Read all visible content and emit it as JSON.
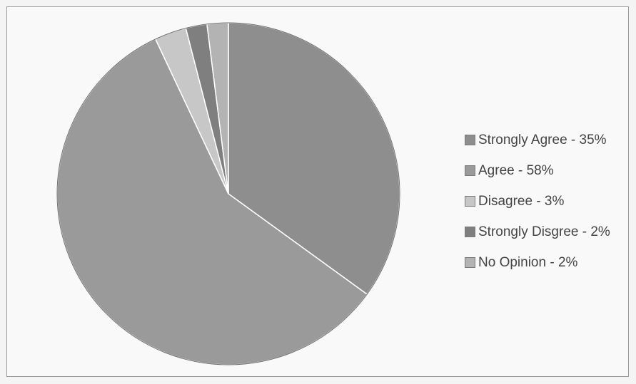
{
  "chart_data": {
    "type": "pie",
    "slices": [
      {
        "label": "Strongly Agree - 35%",
        "value": 35,
        "color": "#8e8e8e"
      },
      {
        "label": "Agree - 58%",
        "value": 58,
        "color": "#9a9a9a"
      },
      {
        "label": "Disagree - 3%",
        "value": 3,
        "color": "#c7c7c7"
      },
      {
        "label": "Strongly Disgree - 2%",
        "value": 2,
        "color": "#7f7f7f"
      },
      {
        "label": "No Opinion - 2%",
        "value": 2,
        "color": "#b3b3b3"
      }
    ],
    "legend_position": "right",
    "start": "top, clockwise"
  }
}
